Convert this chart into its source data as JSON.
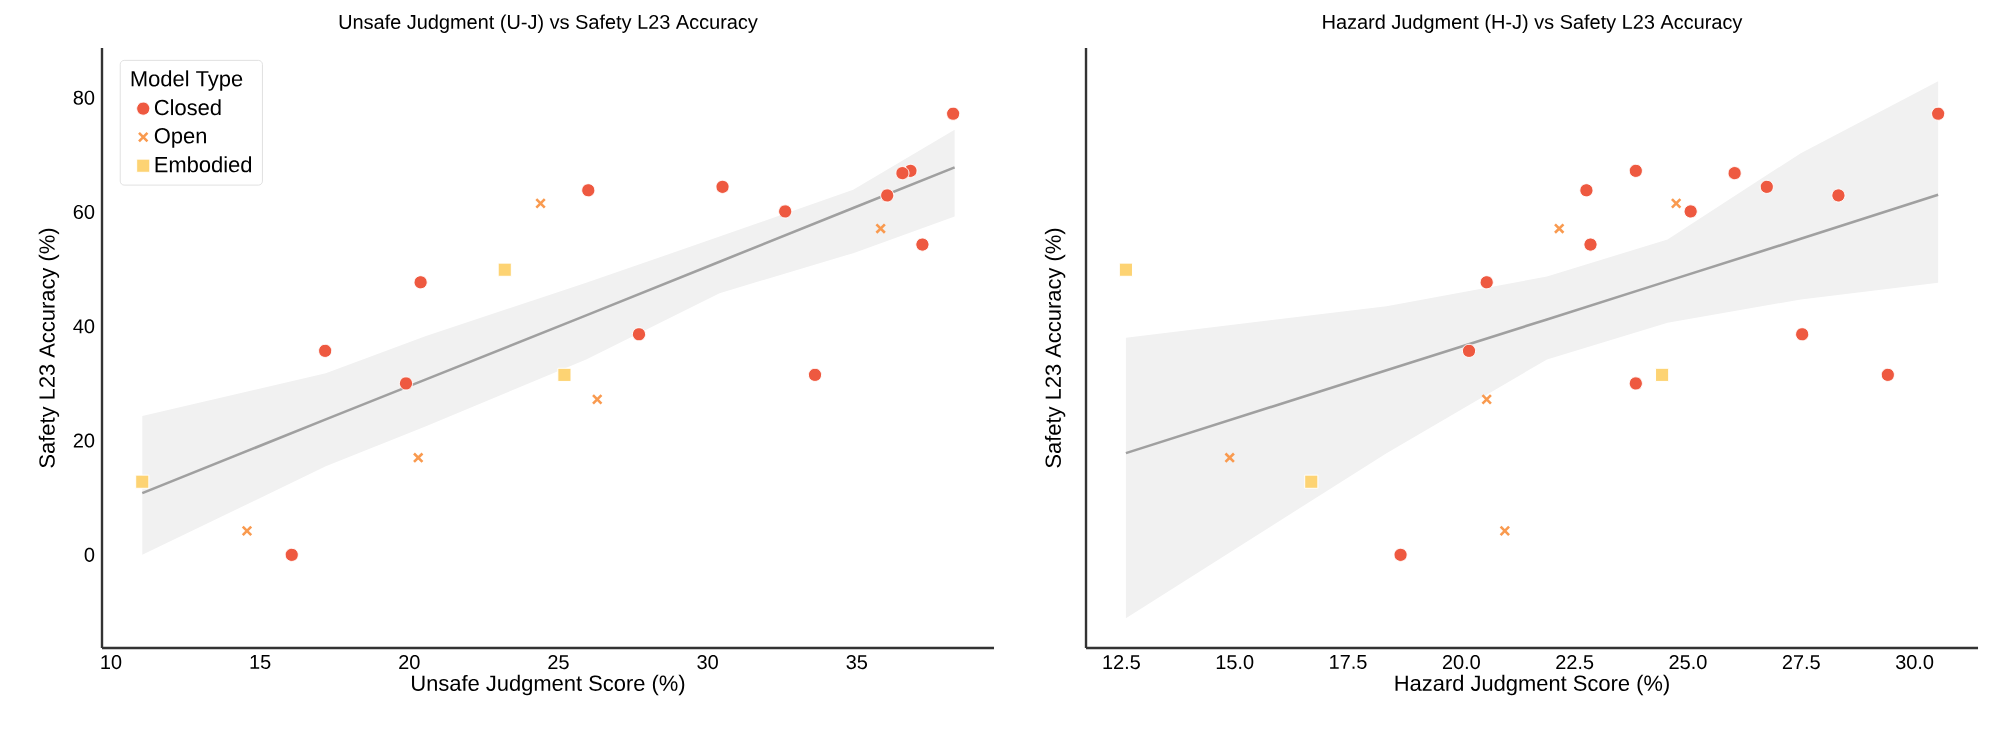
{
  "chart_data": [
    {
      "type": "scatter",
      "title": "Unsafe Judgment (U-J) vs Safety L23 Accuracy",
      "xlabel": "Unsafe Judgment Score (%)",
      "ylabel": "Safety L23 Accuracy (%)",
      "xlim": [
        9.7,
        39.6
      ],
      "ylim": [
        -16.3,
        88.7
      ],
      "xticks": [
        10,
        15,
        20,
        25,
        30,
        35
      ],
      "yticks": [
        0,
        20,
        40,
        60,
        80
      ],
      "grid": false,
      "legend": "top left",
      "legend_title": "Model Type",
      "series": [
        {
          "type": "line",
          "color": "#a0a0a0",
          "marker": "none",
          "line_style": "solid",
          "x": [
            11.05,
            17.2,
            20.56,
            25.93,
            30.4,
            34.88,
            38.28
          ],
          "values": [
            10.8,
            23.7,
            30.7,
            41.9,
            51.3,
            60.7,
            67.8
          ],
          "lower": [
            0,
            15.5,
            22.5,
            34.2,
            45.8,
            52.8,
            59.2
          ],
          "upper": [
            24.3,
            31.8,
            38.3,
            47.6,
            55.7,
            63.9,
            74.4
          ]
        },
        {
          "name": "Closed",
          "color": "#ee5940",
          "marker": "circle",
          "x": [
            38.23,
            36.8,
            36.53,
            36.02,
            37.2,
            32.6,
            30.5,
            26.0,
            27.7,
            33.6,
            20.38,
            19.89,
            17.18,
            16.06
          ],
          "values": [
            77.2,
            67.2,
            66.8,
            62.9,
            54.3,
            60.1,
            64.4,
            63.8,
            38.6,
            31.5,
            47.7,
            30.0,
            35.7,
            0
          ]
        },
        {
          "name": "Open",
          "color": "#f99a4f",
          "marker": "cross",
          "x": [
            24.4,
            26.3,
            20.3,
            14.56,
            35.8
          ],
          "values": [
            61.5,
            27.2,
            17.0,
            4.2,
            57.1
          ]
        },
        {
          "name": "Embodied",
          "color": "#fdd373",
          "marker": "square",
          "x": [
            11.05,
            23.2,
            25.2
          ],
          "values": [
            12.8,
            49.9,
            31.5
          ]
        }
      ]
    },
    {
      "type": "scatter",
      "title": "Hazard Judgment (H-J) vs Safety L23 Accuracy",
      "xlabel": "Hazard Judgment Score (%)",
      "ylabel": "Safety L23 Accuracy (%)",
      "xlim": [
        11.72,
        31.4
      ],
      "ylim": [
        -16.3,
        88.7
      ],
      "xticks": [
        12.5,
        {
          "value": 15,
          "label": "15.0"
        },
        17.5,
        {
          "value": 20,
          "label": "20.0"
        },
        22.5,
        {
          "value": 25,
          "label": "25.0"
        },
        27.5,
        {
          "value": 30,
          "label": "30.0"
        }
      ],
      "yticks": [
        0,
        20,
        40,
        60,
        80
      ],
      "grid": false,
      "tick_labels": "x",
      "series": [
        {
          "type": "line",
          "color": "#a0a0a0",
          "marker": "none",
          "line_style": "solid",
          "x": [
            12.6,
            18.35,
            21.89,
            24.55,
            27.49,
            30.52
          ],
          "values": [
            17.8,
            32.3,
            41.2,
            47.9,
            55.3,
            63.0
          ],
          "lower": [
            -11.1,
            17.8,
            34.2,
            40.6,
            44.7,
            47.6
          ],
          "upper": [
            38.0,
            43.5,
            48.7,
            55.2,
            70.3,
            82.9
          ]
        },
        {
          "color": "#ee5940",
          "marker": "circle",
          "x": [
            30.52,
            23.85,
            26.03,
            28.32,
            22.85,
            25.06,
            26.74,
            22.76,
            27.52,
            29.41,
            20.56,
            23.85,
            20.17,
            18.66
          ],
          "values": [
            77.2,
            67.2,
            66.8,
            62.9,
            54.3,
            60.1,
            64.4,
            63.8,
            38.6,
            31.5,
            47.7,
            30.0,
            35.7,
            0
          ]
        },
        {
          "color": "#f99a4f",
          "marker": "cross",
          "x": [
            24.74,
            20.56,
            14.89,
            20.96,
            22.16
          ],
          "values": [
            61.5,
            27.2,
            17.0,
            4.2,
            57.1
          ]
        },
        {
          "color": "#fdd373",
          "marker": "square",
          "x": [
            12.6,
            16.69,
            24.43
          ],
          "values": [
            49.9,
            12.8,
            31.5
          ]
        }
      ]
    }
  ]
}
